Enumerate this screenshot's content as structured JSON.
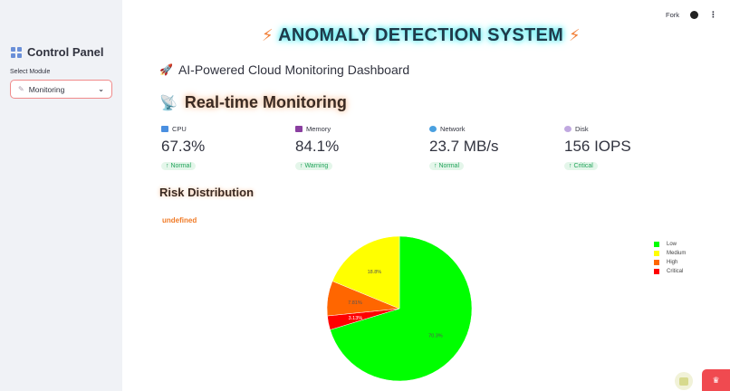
{
  "sidebar": {
    "title": "Control Panel",
    "title_icon": "grid-icon",
    "select_label": "Select Module",
    "select_value": "Monitoring",
    "select_icon": "satellite-icon",
    "chevron": "⌄"
  },
  "topbar": {
    "fork_label": "Fork",
    "github_icon": "github-icon",
    "menu_icon": "⋮"
  },
  "header": {
    "bolt": "⚡",
    "title": "ANOMALY DETECTION SYSTEM",
    "subtitle_icon": "🚀",
    "subtitle": "AI-Powered Cloud Monitoring Dashboard"
  },
  "section": {
    "icon": "📡",
    "title": "Real-time Monitoring"
  },
  "metrics": [
    {
      "label": "CPU",
      "icon_color": "#4a8fe0",
      "value": "67.3%",
      "delta": "↑ Normal"
    },
    {
      "label": "Memory",
      "icon_color": "#8a3fa0",
      "value": "84.1%",
      "delta": "↑ Warning"
    },
    {
      "label": "Network",
      "icon_color": "#4aa0e0",
      "value": "23.7 MB/s",
      "delta": "↑ Normal"
    },
    {
      "label": "Disk",
      "icon_color": "#c0a8e0",
      "value": "156 IOPS",
      "delta": "↑ Critical"
    }
  ],
  "risk": {
    "title": "Risk Distribution",
    "chart_title": "undefined"
  },
  "chart_data": {
    "type": "pie",
    "title": "undefined",
    "categories": [
      "Low",
      "Medium",
      "High",
      "Critical"
    ],
    "values": [
      70.3,
      18.8,
      7.81,
      3.13
    ],
    "labels": [
      "70.3%",
      "18.8%",
      "7.81%",
      "3.13%"
    ],
    "colors": [
      "#00ff00",
      "#ffff00",
      "#ff6600",
      "#ff0000"
    ],
    "legend_position": "right"
  },
  "colors": {
    "accent_red": "#f04a50",
    "delta_green": "#21a35a",
    "title_glow": "#38e8f0"
  }
}
